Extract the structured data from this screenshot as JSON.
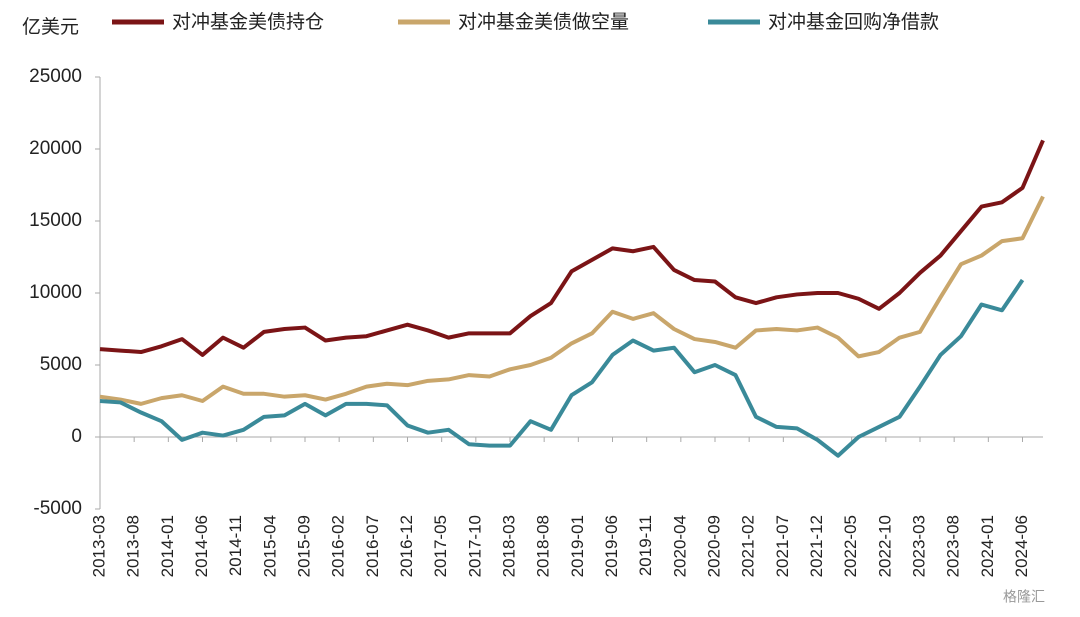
{
  "chart_data": {
    "type": "line",
    "y_label": "亿美元",
    "watermark": "格隆汇",
    "x": [
      "2013-03",
      "2013-06",
      "2013-09",
      "2013-12",
      "2014-03",
      "2014-06",
      "2014-09",
      "2014-12",
      "2015-03",
      "2015-06",
      "2015-09",
      "2015-12",
      "2016-03",
      "2016-06",
      "2016-09",
      "2016-12",
      "2017-03",
      "2017-06",
      "2017-09",
      "2017-12",
      "2018-03",
      "2018-06",
      "2018-09",
      "2018-12",
      "2019-03",
      "2019-06",
      "2019-09",
      "2019-12",
      "2020-03",
      "2020-06",
      "2020-09",
      "2020-12",
      "2021-03",
      "2021-06",
      "2021-09",
      "2021-12",
      "2022-03",
      "2022-06",
      "2022-09",
      "2022-12",
      "2023-03",
      "2023-06",
      "2023-09",
      "2023-12",
      "2024-03",
      "2024-06",
      "2024-09"
    ],
    "series": [
      {
        "name": "对冲基金美债持仓",
        "color": "#7b1416",
        "values": [
          6100,
          6000,
          5900,
          6300,
          6800,
          5700,
          6900,
          6200,
          7300,
          7500,
          7600,
          6700,
          6900,
          7000,
          7400,
          7800,
          7400,
          6900,
          7200,
          7200,
          7200,
          8400,
          9300,
          11500,
          12300,
          13100,
          12900,
          13200,
          11600,
          10900,
          10800,
          9700,
          9300,
          9700,
          9900,
          10000,
          10000,
          9600,
          8900,
          10000,
          11400,
          12600,
          14300,
          16000,
          16300,
          17300,
          20600
        ]
      },
      {
        "name": "对冲基金美债做空量",
        "color": "#c9a66b",
        "values": [
          2800,
          2600,
          2300,
          2700,
          2900,
          2500,
          3500,
          3000,
          3000,
          2800,
          2900,
          2600,
          3000,
          3500,
          3700,
          3600,
          3900,
          4000,
          4300,
          4200,
          4700,
          5000,
          5500,
          6500,
          7200,
          8700,
          8200,
          8600,
          7500,
          6800,
          6600,
          6200,
          7400,
          7500,
          7400,
          7600,
          6900,
          5600,
          5900,
          6900,
          7300,
          9700,
          12000,
          12600,
          13600,
          13800,
          16700
        ]
      },
      {
        "name": "对冲基金回购净借款",
        "color": "#3a8a99",
        "values": [
          2500,
          2400,
          1700,
          1100,
          -200,
          300,
          100,
          500,
          1400,
          1500,
          2300,
          1500,
          2300,
          2300,
          2200,
          800,
          300,
          500,
          -500,
          -600,
          -600,
          1100,
          500,
          2900,
          3800,
          5700,
          6700,
          6000,
          6200,
          4500,
          5000,
          4300,
          1400,
          700,
          600,
          -200,
          -1300,
          0,
          700,
          1400,
          3500,
          5700,
          7000,
          9200,
          8800,
          10900,
          null
        ]
      }
    ],
    "xlim": [
      "2013-03",
      "2024-09"
    ],
    "xticks": [
      "2013-03",
      "2013-08",
      "2014-01",
      "2014-06",
      "2014-11",
      "2015-04",
      "2015-09",
      "2016-02",
      "2016-07",
      "2016-12",
      "2017-05",
      "2017-10",
      "2018-03",
      "2018-08",
      "2019-01",
      "2019-06",
      "2019-11",
      "2020-04",
      "2020-09",
      "2021-02",
      "2021-07",
      "2021-12",
      "2022-05",
      "2022-10",
      "2023-03",
      "2023-08",
      "2024-01",
      "2024-06"
    ],
    "ylim": [
      -5000,
      25000
    ],
    "yticks": [
      -5000,
      0,
      5000,
      10000,
      15000,
      20000,
      25000
    ]
  }
}
